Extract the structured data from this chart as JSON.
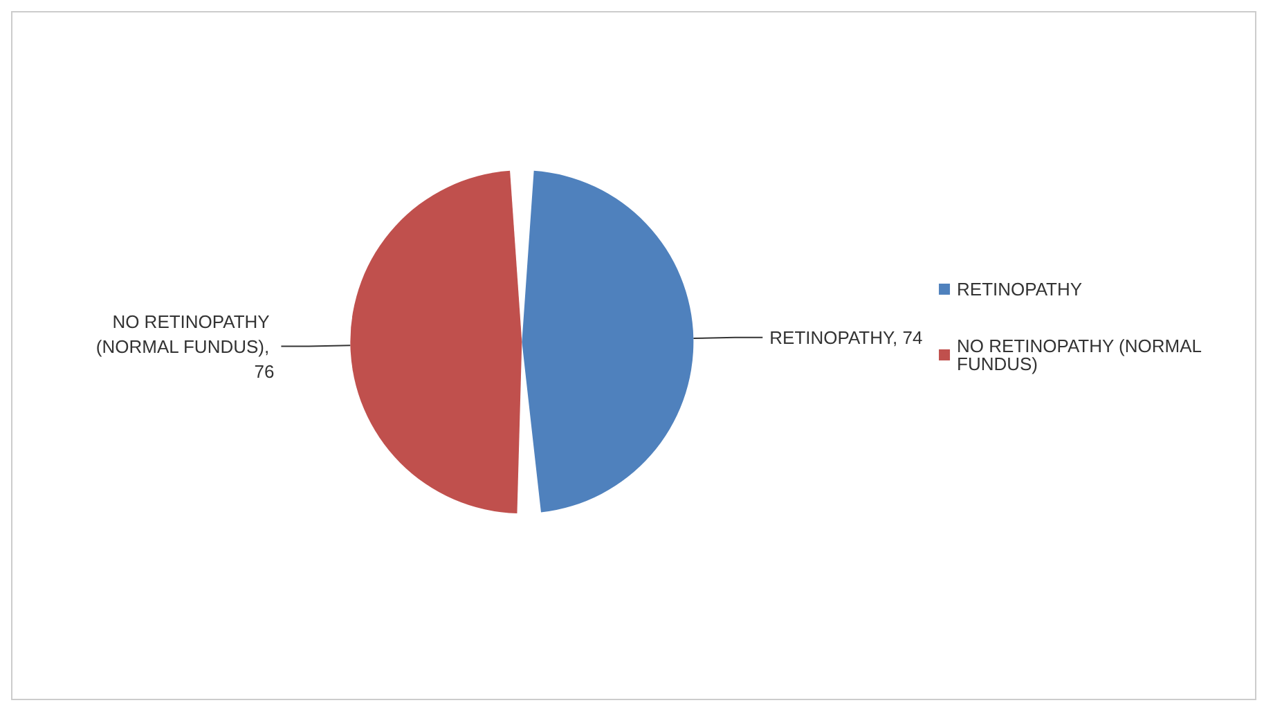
{
  "chart_data": {
    "type": "pie",
    "categories": [
      "RETINOPATHY",
      "NO RETINOPATHY (NORMAL FUNDUS)"
    ],
    "values": [
      74,
      76
    ],
    "colors": [
      "#4f81bd",
      "#c0504d"
    ],
    "value_labels": [
      "RETINOPATHY, 74",
      "NO RETINOPATHY (NORMAL FUNDUS), 76"
    ],
    "legend": "right"
  }
}
